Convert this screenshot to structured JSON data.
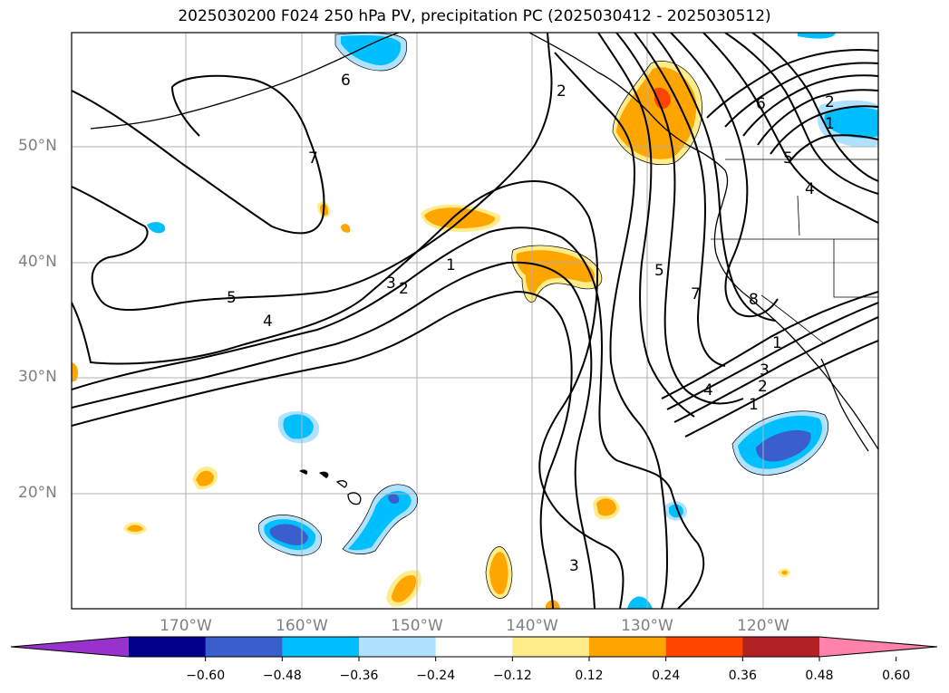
{
  "title": "2025030200 F024 250 hPa PV, precipitation PC (2025030412 - 2025030512)",
  "lat_labels": [
    "50°N",
    "40°N",
    "30°N",
    "20°N"
  ],
  "lon_labels": [
    "170°W",
    "160°W",
    "150°W",
    "140°W",
    "130°W",
    "120°W"
  ],
  "colorbar": {
    "ticks": [
      "−0.60",
      "−0.48",
      "−0.36",
      "−0.24",
      "−0.12",
      "0.12",
      "0.24",
      "0.36",
      "0.48",
      "0.60"
    ],
    "colors": [
      "#9932cc",
      "#00008b",
      "#3a5fcd",
      "#00bfff",
      "#b0e2ff",
      "#ffffff",
      "#ffec8b",
      "#ffa500",
      "#ff4500",
      "#b22222",
      "#ff82ab"
    ]
  },
  "pv_contour_labels": [
    "6",
    "2",
    "7",
    "6",
    "2",
    "1",
    "5",
    "4",
    "5",
    "4",
    "3",
    "2",
    "1",
    "5",
    "7",
    "8",
    "1",
    "2",
    "3",
    "4",
    "1",
    "3"
  ],
  "palette": {
    "frame": "#000000",
    "grid": "#b0b0b0",
    "contour": "#000000"
  }
}
